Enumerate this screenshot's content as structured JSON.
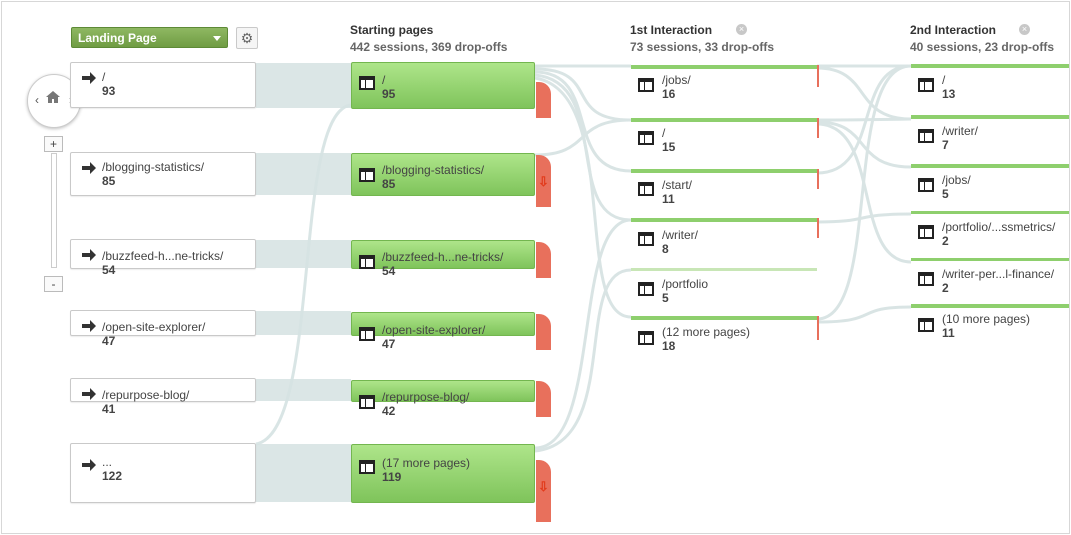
{
  "controls": {
    "dimension_dropdown": "Landing Page",
    "settings_icon": "gear-icon",
    "zoom_in": "+",
    "zoom_out": "-",
    "nav_home_icon": "home-icon"
  },
  "columns": [
    {
      "title": "Starting pages",
      "summary": "442 sessions, 369 drop-offs"
    },
    {
      "title": "1st Interaction",
      "summary": "73 sessions, 33 drop-offs"
    },
    {
      "title": "2nd Interaction",
      "summary": "40 sessions, 23 drop-offs"
    }
  ],
  "landing_pages": [
    {
      "name": "/",
      "value": "93"
    },
    {
      "name": "/blogging-statistics/",
      "value": "85"
    },
    {
      "name": "/buzzfeed-h...ne-tricks/",
      "value": "54"
    },
    {
      "name": "/open-site-explorer/",
      "value": "47"
    },
    {
      "name": "/repurpose-blog/",
      "value": "41"
    },
    {
      "name": "...",
      "value": "122"
    }
  ],
  "starting_pages": [
    {
      "name": "/",
      "value": "95"
    },
    {
      "name": "/blogging-statistics/",
      "value": "85"
    },
    {
      "name": "/buzzfeed-h...ne-tricks/",
      "value": "54"
    },
    {
      "name": "/open-site-explorer/",
      "value": "47"
    },
    {
      "name": "/repurpose-blog/",
      "value": "42"
    },
    {
      "name": "(17 more pages)",
      "value": "119"
    }
  ],
  "first_interaction": [
    {
      "name": "/jobs/",
      "value": "16"
    },
    {
      "name": "/",
      "value": "15"
    },
    {
      "name": "/start/",
      "value": "11"
    },
    {
      "name": "/writer/",
      "value": "8"
    },
    {
      "name": "/portfolio",
      "value": "5"
    },
    {
      "name": "(12 more pages)",
      "value": "18"
    }
  ],
  "second_interaction": [
    {
      "name": "/",
      "value": "13"
    },
    {
      "name": "/writer/",
      "value": "7"
    },
    {
      "name": "/jobs/",
      "value": "5"
    },
    {
      "name": "/portfolio/...ssmetrics/",
      "value": "2"
    },
    {
      "name": "/writer-per...l-finance/",
      "value": "2"
    },
    {
      "name": "(10 more pages)",
      "value": "11"
    }
  ],
  "colors": {
    "node_green": "#8ecf6d",
    "dropoff_red": "#e8705c",
    "flow_gray": "#d6e3e3",
    "button_green": "#7aa84d"
  }
}
